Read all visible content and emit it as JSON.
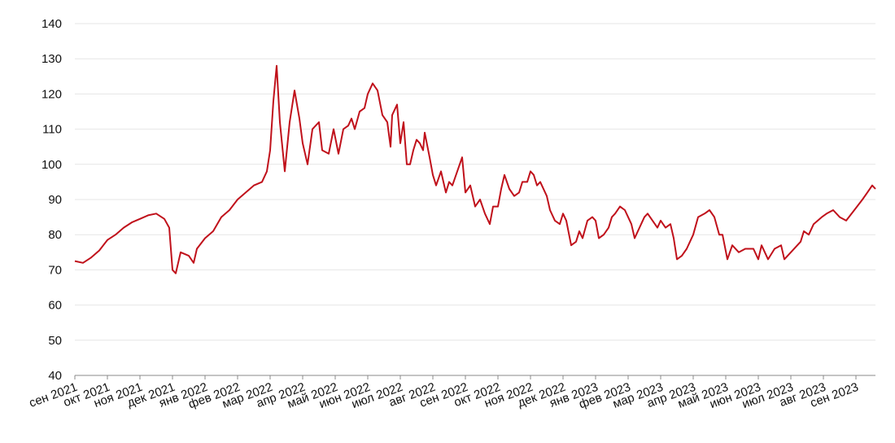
{
  "chart_data": {
    "type": "line",
    "x": [
      0,
      0.25,
      0.5,
      0.75,
      1,
      1.25,
      1.5,
      1.75,
      2,
      2.25,
      2.5,
      2.75,
      2.9,
      3,
      3.1,
      3.25,
      3.5,
      3.65,
      3.75,
      4,
      4.25,
      4.5,
      4.75,
      5,
      5.25,
      5.5,
      5.75,
      5.9,
      6,
      6.1,
      6.2,
      6.3,
      6.45,
      6.6,
      6.75,
      6.9,
      7,
      7.15,
      7.3,
      7.5,
      7.6,
      7.8,
      7.95,
      8.1,
      8.25,
      8.4,
      8.5,
      8.6,
      8.75,
      8.9,
      9,
      9.15,
      9.3,
      9.45,
      9.6,
      9.7,
      9.75,
      9.9,
      10,
      10.1,
      10.2,
      10.3,
      10.4,
      10.5,
      10.6,
      10.7,
      10.75,
      10.9,
      11,
      11.1,
      11.25,
      11.4,
      11.5,
      11.6,
      11.75,
      11.9,
      12,
      12.15,
      12.3,
      12.45,
      12.6,
      12.75,
      12.85,
      13,
      13.1,
      13.2,
      13.35,
      13.5,
      13.65,
      13.75,
      13.9,
      14,
      14.1,
      14.2,
      14.3,
      14.5,
      14.6,
      14.75,
      14.9,
      15,
      15.1,
      15.25,
      15.4,
      15.5,
      15.6,
      15.75,
      15.9,
      16,
      16.1,
      16.25,
      16.4,
      16.5,
      16.6,
      16.75,
      16.9,
      17,
      17.1,
      17.2,
      17.4,
      17.5,
      17.6,
      17.75,
      17.9,
      18,
      18.15,
      18.3,
      18.4,
      18.5,
      18.65,
      18.8,
      19,
      19.15,
      19.35,
      19.5,
      19.65,
      19.8,
      19.9,
      20.05,
      20.2,
      20.4,
      20.6,
      20.85,
      21,
      21.1,
      21.3,
      21.5,
      21.7,
      21.8,
      22,
      22.3,
      22.4,
      22.55,
      22.7,
      22.95,
      23.1,
      23.3,
      23.5,
      23.7,
      23.95,
      24.2,
      24.35,
      24.5,
      24.6
    ],
    "series": [
      {
        "color": "#c0111b",
        "values": [
          72.5,
          72,
          73.5,
          75.5,
          78.5,
          80,
          82,
          83.5,
          84.5,
          85.5,
          86,
          84.5,
          82,
          70,
          69,
          75,
          74,
          72,
          76,
          79,
          81,
          85,
          87,
          90,
          92,
          94,
          95,
          98,
          104,
          118,
          128,
          112,
          98,
          112,
          121,
          113,
          106,
          100,
          110,
          112,
          104,
          103,
          110,
          103,
          110,
          111,
          113,
          110,
          115,
          116,
          120,
          123,
          121,
          114,
          112,
          105,
          114,
          117,
          106,
          112,
          100,
          100,
          104,
          107,
          106,
          104,
          109,
          102,
          97,
          94,
          98,
          92,
          95,
          94,
          98,
          102,
          92,
          94,
          88,
          90,
          86,
          83,
          88,
          88,
          93,
          97,
          93,
          91,
          92,
          95,
          95,
          98,
          97,
          94,
          95,
          91,
          87,
          84,
          83,
          86,
          84,
          77,
          78,
          81,
          79,
          84,
          85,
          84,
          79,
          80,
          82,
          85,
          86,
          88,
          87,
          85,
          83,
          79,
          83,
          85,
          86,
          84,
          82,
          84,
          82,
          83,
          79,
          73,
          74,
          76,
          80,
          85,
          86,
          87,
          85,
          80,
          80,
          73,
          77,
          75,
          76,
          76,
          73,
          77,
          73,
          76,
          77,
          73,
          75,
          78,
          81,
          80,
          83,
          85,
          86,
          87,
          85,
          84,
          87,
          90,
          92,
          94,
          93
        ]
      }
    ],
    "xlim": [
      0,
      24.6
    ],
    "xticks": [
      {
        "value": 0,
        "label": "сен 2021"
      },
      {
        "value": 1,
        "label": "окт 2021"
      },
      {
        "value": 2,
        "label": "ноя 2021"
      },
      {
        "value": 3,
        "label": "дек 2021"
      },
      {
        "value": 4,
        "label": "янв 2022"
      },
      {
        "value": 5,
        "label": "фев 2022"
      },
      {
        "value": 6,
        "label": "мар 2022"
      },
      {
        "value": 7,
        "label": "апр 2022"
      },
      {
        "value": 8,
        "label": "май 2022"
      },
      {
        "value": 9,
        "label": "июн 2022"
      },
      {
        "value": 10,
        "label": "июл 2022"
      },
      {
        "value": 11,
        "label": "авг 2022"
      },
      {
        "value": 12,
        "label": "сен 2022"
      },
      {
        "value": 13,
        "label": "окт 2022"
      },
      {
        "value": 14,
        "label": "ноя 2022"
      },
      {
        "value": 15,
        "label": "дек 2022"
      },
      {
        "value": 16,
        "label": "янв 2023"
      },
      {
        "value": 17,
        "label": "фев 2023"
      },
      {
        "value": 18,
        "label": "мар 2023"
      },
      {
        "value": 19,
        "label": "апр 2023"
      },
      {
        "value": 20,
        "label": "май 2023"
      },
      {
        "value": 21,
        "label": "июн 2023"
      },
      {
        "value": 22,
        "label": "июл 2023"
      },
      {
        "value": 23,
        "label": "авг 2023"
      },
      {
        "value": 24,
        "label": "сен 2023"
      }
    ],
    "ylim": [
      40,
      140
    ],
    "yticks": [
      40,
      50,
      60,
      70,
      80,
      90,
      100,
      110,
      120,
      130,
      140
    ],
    "grid": true
  }
}
